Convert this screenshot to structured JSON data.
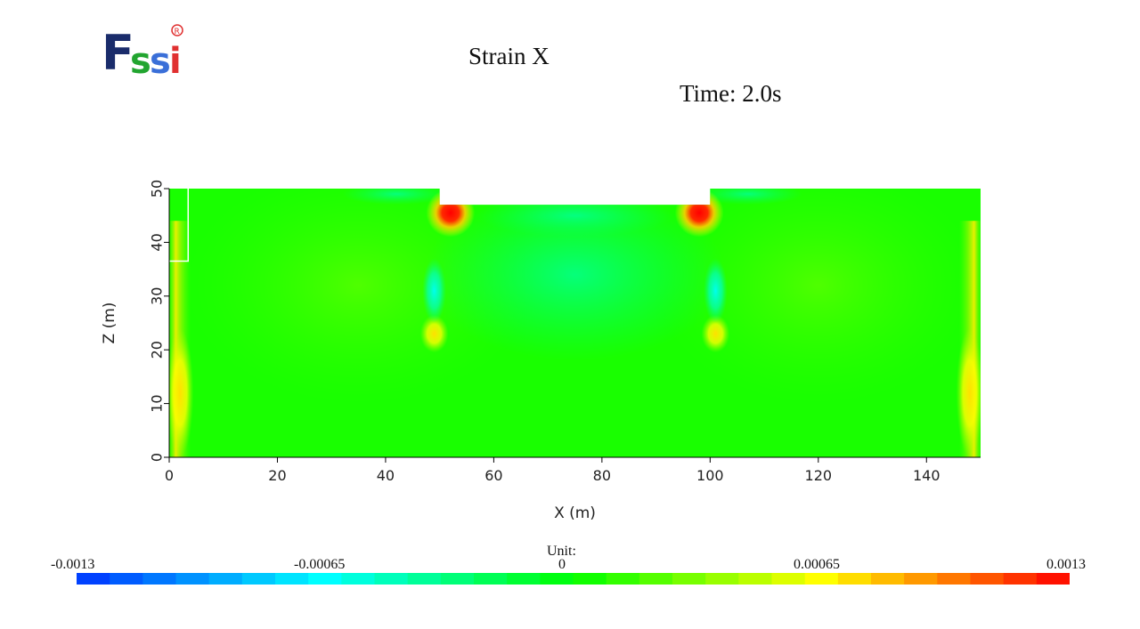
{
  "logo": {
    "letters": [
      "F",
      "s",
      "s",
      "i"
    ],
    "registered": "R"
  },
  "header": {
    "title": "Strain X",
    "time": "Time: 2.0s"
  },
  "chart_data": {
    "type": "heatmap",
    "title": "Strain X",
    "xlabel": "X (m)",
    "ylabel": "Z (m)",
    "xlim": [
      0,
      150
    ],
    "ylim": [
      0,
      50
    ],
    "x_ticks": [
      0,
      20,
      40,
      60,
      80,
      100,
      120,
      140
    ],
    "y_ticks": [
      0,
      10,
      20,
      30,
      40,
      50
    ],
    "domain_outline": [
      [
        0,
        0
      ],
      [
        150,
        0
      ],
      [
        150,
        50
      ],
      [
        100,
        50
      ],
      [
        100,
        47
      ],
      [
        50,
        47
      ],
      [
        50,
        50
      ],
      [
        0,
        50
      ]
    ],
    "hotspots": [
      {
        "x": 52,
        "z": 45.5,
        "value": 0.0013
      },
      {
        "x": 98,
        "z": 45.5,
        "value": 0.0013
      },
      {
        "x": 49,
        "z": 23,
        "value": 0.0006
      },
      {
        "x": 101,
        "z": 23,
        "value": 0.0006
      },
      {
        "x": 49,
        "z": 31,
        "value": -0.0005
      },
      {
        "x": 101,
        "z": 31,
        "value": -0.0005
      },
      {
        "x": 2,
        "z": 12,
        "value": 0.0005
      },
      {
        "x": 148,
        "z": 12,
        "value": 0.0005
      }
    ],
    "colorbar": {
      "unit": "Unit:",
      "min": -0.0013,
      "max": 0.0013,
      "labels": [
        "-0.0013",
        "-0.00065",
        "0",
        "0.00065",
        "0.0013"
      ],
      "colors": [
        "#0033ff",
        "#00ffff",
        "#00ff00",
        "#ffff00",
        "#ff0000"
      ]
    }
  }
}
